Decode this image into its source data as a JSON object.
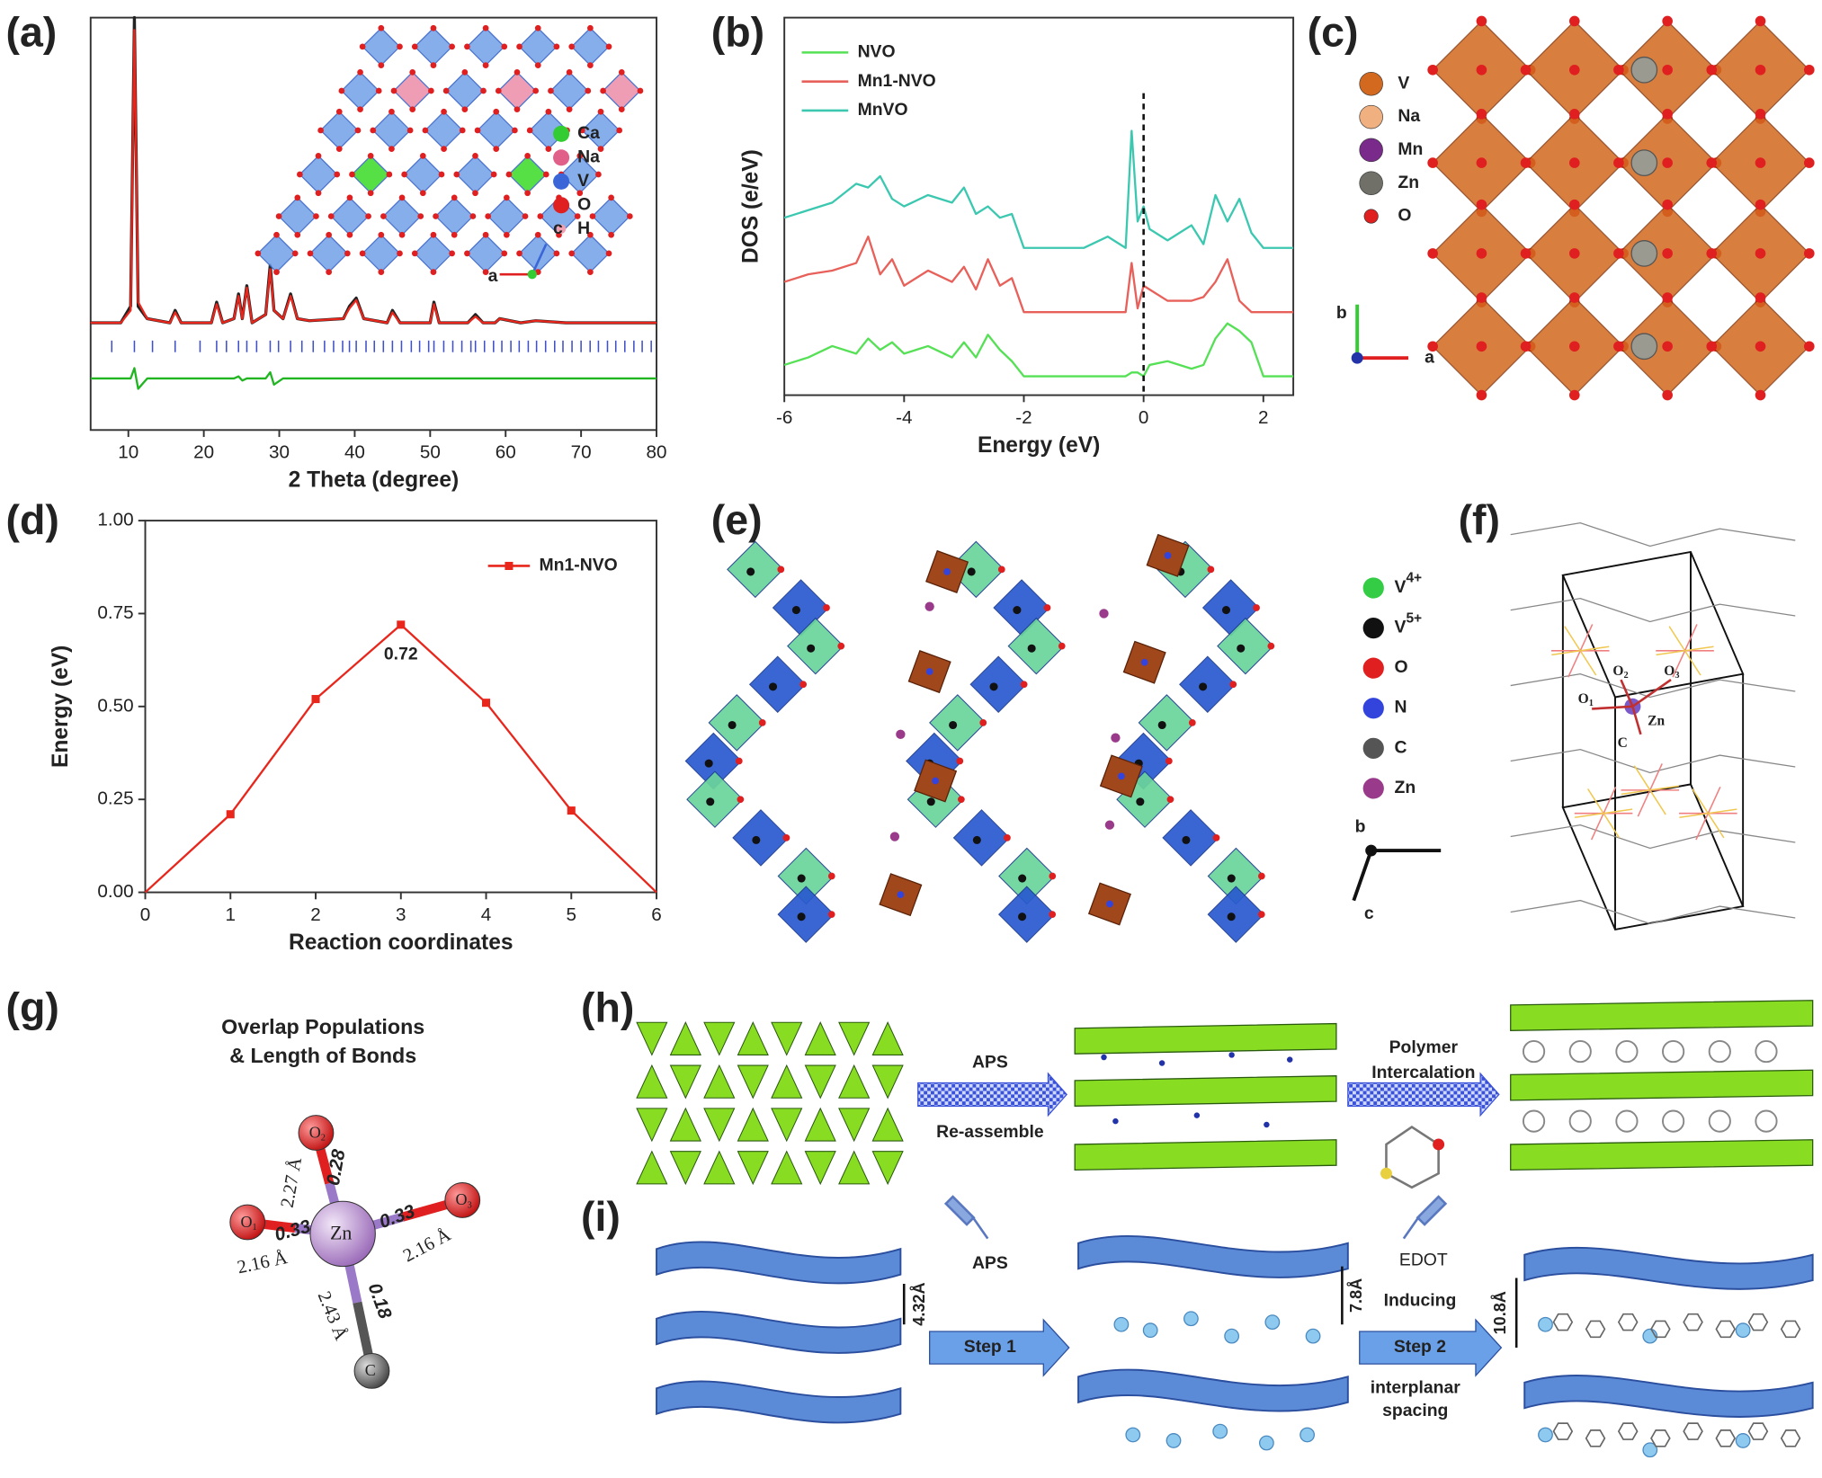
{
  "chart_data": [
    {
      "type": "line",
      "panel_label": "(a)",
      "xlabel": "2 Theta (degree)",
      "xlim": [
        5,
        80
      ],
      "xticks": [
        10,
        20,
        30,
        40,
        50,
        60,
        70,
        80
      ],
      "ylim": [
        0,
        100
      ],
      "x": [
        5,
        9,
        10.3,
        10.8,
        11.3,
        12.5,
        15.5,
        16.2,
        17,
        21,
        21.7,
        22.5,
        24,
        24.6,
        25.1,
        25.7,
        26.4,
        28.2,
        28.8,
        29.3,
        30.5,
        31.5,
        32.4,
        34,
        38.5,
        39.3,
        40.2,
        41.2,
        44.3,
        45,
        46,
        50,
        50.5,
        51.2,
        55,
        56,
        57,
        58.6,
        59.2,
        62,
        64,
        68,
        72,
        76,
        80
      ],
      "series": [
        {
          "color": "#222222",
          "values": [
            26,
            26,
            30,
            100,
            30,
            27,
            26,
            29,
            26,
            26,
            31,
            26,
            27,
            33,
            27,
            35,
            26,
            28,
            40,
            29,
            27,
            33,
            27,
            26.5,
            27,
            30,
            32,
            27,
            26,
            29,
            26,
            26,
            31,
            26,
            26,
            28,
            26,
            26,
            27,
            26,
            26.5,
            26,
            26,
            26,
            26
          ]
        },
        {
          "color": "#e8261c",
          "values": [
            26,
            26,
            29,
            97,
            31,
            27,
            26,
            28.5,
            26,
            26,
            30.5,
            26,
            27,
            32.5,
            27,
            34.5,
            26,
            28,
            39,
            29,
            27,
            32.5,
            27,
            26.5,
            27,
            29.5,
            31.5,
            27,
            26,
            28.5,
            26,
            26,
            30.5,
            26,
            26,
            27.5,
            26,
            26,
            27,
            26,
            26.5,
            26,
            26,
            26,
            26
          ]
        },
        {
          "color": "#22b522",
          "values": [
            12.5,
            12.5,
            12.5,
            15,
            10,
            12.5,
            12.5,
            12.5,
            12.5,
            12.5,
            12.5,
            12.5,
            12.5,
            13,
            12,
            12.5,
            12.5,
            12.5,
            14,
            11,
            12.5,
            12.5,
            12.5,
            12.5,
            12.5,
            12.5,
            12.5,
            12.5,
            12.5,
            12.5,
            12.5,
            12.5,
            12.5,
            12.5,
            12.5,
            12.5,
            12.5,
            12.5,
            12.5,
            12.5,
            12.5,
            12.5,
            12.5,
            12.5,
            12.5
          ]
        }
      ],
      "reflection_positions": [
        7.8,
        10.8,
        13.2,
        16.2,
        19.5,
        21.7,
        23,
        24.6,
        25.7,
        27,
        28.8,
        29.9,
        31.5,
        33,
        34.5,
        36,
        37.2,
        38.4,
        39.3,
        40.2,
        41.5,
        42.6,
        43.8,
        45,
        46.2,
        47.5,
        48.6,
        49.8,
        50.5,
        51.8,
        53,
        54.2,
        55.4,
        56,
        57.2,
        58.4,
        59.5,
        60.7,
        61.8,
        63,
        64.1,
        65.3,
        66.5,
        67.6,
        68.8,
        70,
        71.2,
        72.3,
        73.5,
        74.6,
        75.8,
        77,
        78.1,
        79.3
      ],
      "reflection_color": "#4050c8",
      "inset_legend": [
        {
          "label": "Ca",
          "color": "#33cc33"
        },
        {
          "label": "Na",
          "color": "#e0608a"
        },
        {
          "label": "V",
          "color": "#3a66d8"
        },
        {
          "label": "O",
          "color": "#e02020"
        },
        {
          "label": "H",
          "color": "#f0a0b0"
        }
      ],
      "inset_axes": [
        "a",
        "c"
      ]
    },
    {
      "type": "line",
      "panel_label": "(b)",
      "xlabel": "Energy (eV)",
      "ylabel": "DOS (e/eV)",
      "xlim": [
        -6,
        2.5
      ],
      "xticks": [
        -6,
        -4,
        -2,
        0,
        2
      ],
      "ylim": [
        0,
        10
      ],
      "legend": "upper left",
      "reference_line_x": 0,
      "x": [
        -6,
        -5.6,
        -5.2,
        -4.8,
        -4.6,
        -4.4,
        -4.2,
        -4,
        -3.6,
        -3.2,
        -3,
        -2.8,
        -2.6,
        -2.4,
        -2.2,
        -2,
        -1.5,
        -1,
        -0.6,
        -0.3,
        -0.2,
        -0.1,
        0,
        0.1,
        0.4,
        0.8,
        1,
        1.2,
        1.4,
        1.6,
        1.8,
        2,
        2.5
      ],
      "series": [
        {
          "name": "NVO",
          "color": "#55e055",
          "values": [
            0.8,
            1.0,
            1.3,
            1.1,
            1.5,
            1.2,
            1.4,
            1.1,
            1.3,
            1.0,
            1.4,
            1.0,
            1.6,
            1.2,
            0.9,
            0.5,
            0.5,
            0.5,
            0.5,
            0.5,
            0.6,
            0.6,
            0.5,
            0.8,
            0.9,
            0.7,
            0.8,
            1.5,
            1.9,
            1.7,
            1.4,
            0.5,
            0.5
          ]
        },
        {
          "name": "Mn1-NVO",
          "color": "#e8605a",
          "values": [
            3.0,
            3.2,
            3.3,
            3.5,
            4.2,
            3.2,
            3.6,
            2.9,
            3.3,
            3.0,
            3.4,
            2.8,
            3.6,
            2.9,
            3.1,
            2.2,
            2.2,
            2.2,
            2.2,
            2.2,
            3.5,
            2.3,
            2.9,
            2.8,
            2.5,
            2.5,
            2.6,
            3.0,
            3.6,
            2.5,
            2.2,
            2.2,
            2.2
          ]
        },
        {
          "name": "MnVO",
          "color": "#3cc8b0",
          "values": [
            4.7,
            4.9,
            5.1,
            5.6,
            5.5,
            5.8,
            5.2,
            5.0,
            5.3,
            5.1,
            5.5,
            4.8,
            5.0,
            4.7,
            4.8,
            3.9,
            3.9,
            3.9,
            4.2,
            3.9,
            7.0,
            4.6,
            5.0,
            4.4,
            4.1,
            4.5,
            4.0,
            5.3,
            4.6,
            5.2,
            4.3,
            3.9,
            3.9
          ]
        }
      ]
    },
    {
      "type": "line",
      "panel_label": "(d)",
      "xlabel": "Reaction coordinates",
      "ylabel": "Energy (eV)",
      "xlim": [
        0,
        6
      ],
      "xticks": [
        0,
        1,
        2,
        3,
        4,
        5,
        6
      ],
      "ylim": [
        0,
        1
      ],
      "yticks": [
        {
          "value": 0,
          "label": "0.00"
        },
        {
          "value": 0.25,
          "label": "0.25"
        },
        {
          "value": 0.5,
          "label": "0.50"
        },
        {
          "value": 0.75,
          "label": "0.75"
        },
        {
          "value": 1,
          "label": "1.00"
        }
      ],
      "legend": "upper right",
      "annotation": "0.72",
      "x": [
        0,
        1,
        2,
        3,
        4,
        5,
        6
      ],
      "series": [
        {
          "name": "Mn1-NVO",
          "color": "#e8261c",
          "values": [
            0,
            0.21,
            0.52,
            0.72,
            0.51,
            0.22,
            0
          ]
        }
      ]
    }
  ],
  "panels": {
    "c": {
      "label": "(c)",
      "legend": [
        {
          "label": "V",
          "color": "#d2691e"
        },
        {
          "label": "Na",
          "color": "#f0b080"
        },
        {
          "label": "Mn",
          "color": "#7a2a8a"
        },
        {
          "label": "Zn",
          "color": "#707068"
        },
        {
          "label": "O",
          "color": "#e02020"
        }
      ],
      "axes": [
        "b",
        "a"
      ]
    },
    "e": {
      "label": "(e)",
      "legend": [
        {
          "symbol": "V",
          "charge": "4+",
          "color": "#33cc44"
        },
        {
          "symbol": "V",
          "charge": "5+",
          "color": "#111111"
        },
        {
          "symbol": "O",
          "color": "#e02020"
        },
        {
          "symbol": "N",
          "color": "#3344dd"
        },
        {
          "symbol": "C",
          "color": "#555555"
        },
        {
          "symbol": "Zn",
          "color": "#9a3a8a"
        }
      ],
      "axes": [
        "b",
        "c"
      ]
    },
    "f": {
      "label": "(f)",
      "atoms": [
        {
          "symbol": "O",
          "index": "2"
        },
        {
          "symbol": "O",
          "index": "3"
        },
        {
          "symbol": "O",
          "index": "1"
        },
        {
          "symbol": "Zn"
        },
        {
          "symbol": "C"
        }
      ]
    },
    "g": {
      "label": "(g)",
      "title_line1": "Overlap Populations",
      "title_line2": "& Length of Bonds",
      "atoms": [
        {
          "symbol": "O",
          "index": "2"
        },
        {
          "symbol": "O",
          "index": "1"
        },
        {
          "symbol": "O",
          "index": "3"
        },
        {
          "symbol": "Zn"
        },
        {
          "symbol": "C"
        }
      ],
      "bond_lengths": [
        "2.27 Å",
        "2.16 Å",
        "2.16 Å",
        "2.43 Å"
      ],
      "overlap_populations": [
        "0.28",
        "0.33",
        "0.33",
        "0.18"
      ]
    },
    "h": {
      "label": "(h)",
      "step1_above": "APS",
      "step1_below": "Re-assemble",
      "step2": [
        "Polymer",
        "Intercalation"
      ]
    },
    "i": {
      "label": "(i)",
      "reagent1": "APS",
      "step1": "Step 1",
      "spacing1": "4.32Å",
      "spacing2": "7.8Å",
      "reagent2": "EDOT",
      "step2": "Step 2",
      "note": [
        "Inducing",
        "interplanar",
        "spacing"
      ],
      "spacing3": "10.8Å"
    }
  }
}
